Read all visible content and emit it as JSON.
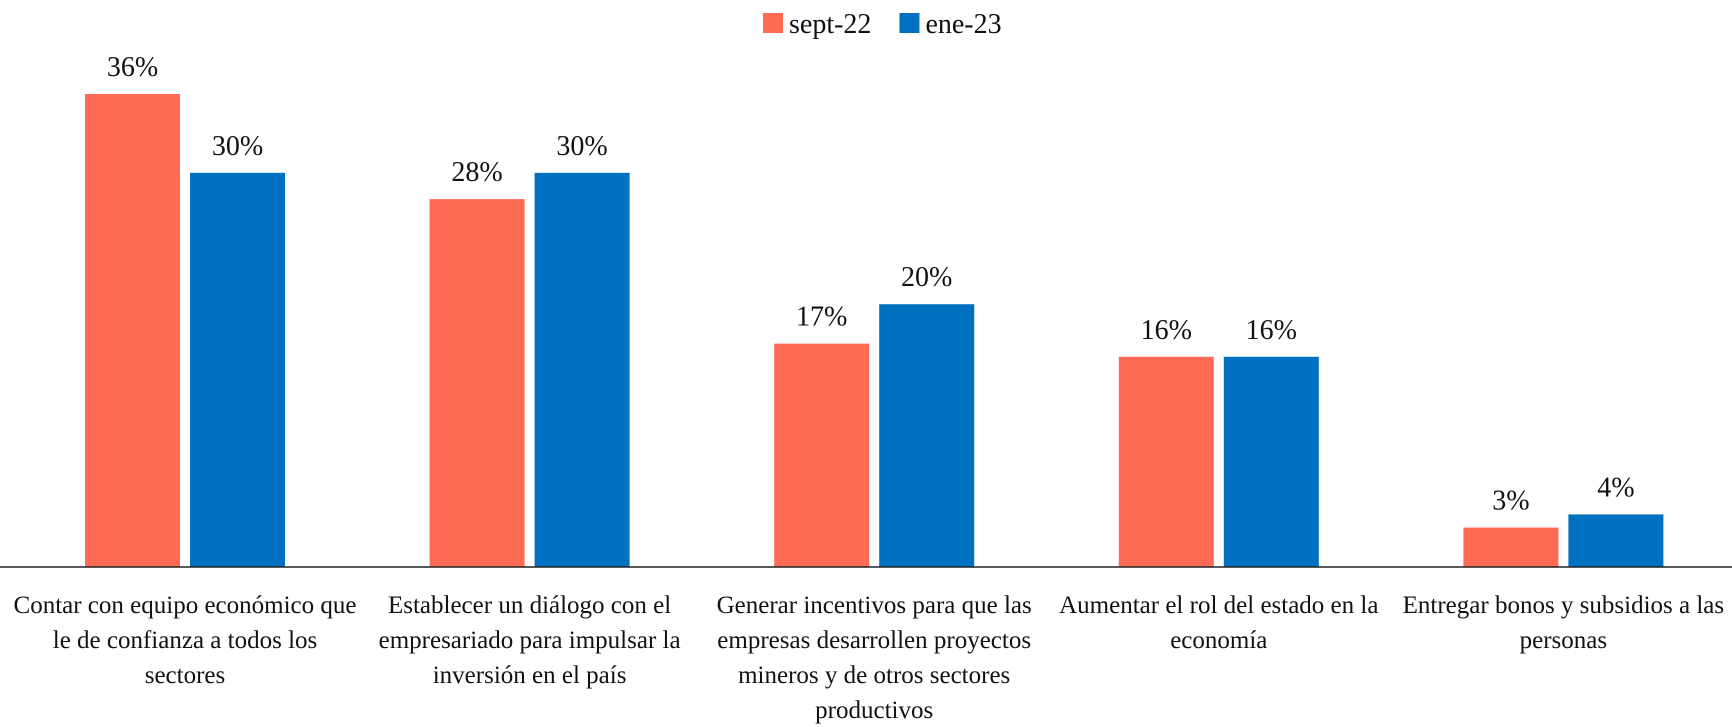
{
  "chart_data": {
    "type": "bar",
    "categories": [
      "Contar con equipo económico que le de confianza a todos los sectores",
      "Establecer un diálogo con el empresariado para impulsar la inversión en el país",
      "Generar incentivos para que las empresas  desarrollen proyectos mineros y de otros sectores productivos",
      "Aumentar el rol del estado en la economía",
      "Entregar bonos y subsidios a las personas"
    ],
    "series": [
      {
        "name": "sept-22",
        "color": "#ff6a55",
        "values": [
          36,
          28,
          17,
          16,
          3
        ],
        "value_labels": [
          "36%",
          "28%",
          "17%",
          "16%",
          "3%"
        ]
      },
      {
        "name": "ene-23",
        "color": "#0070c0",
        "values": [
          30,
          30,
          20,
          16,
          4
        ],
        "value_labels": [
          "30%",
          "30%",
          "20%",
          "16%",
          "4%"
        ]
      }
    ],
    "legend": "top"
  }
}
